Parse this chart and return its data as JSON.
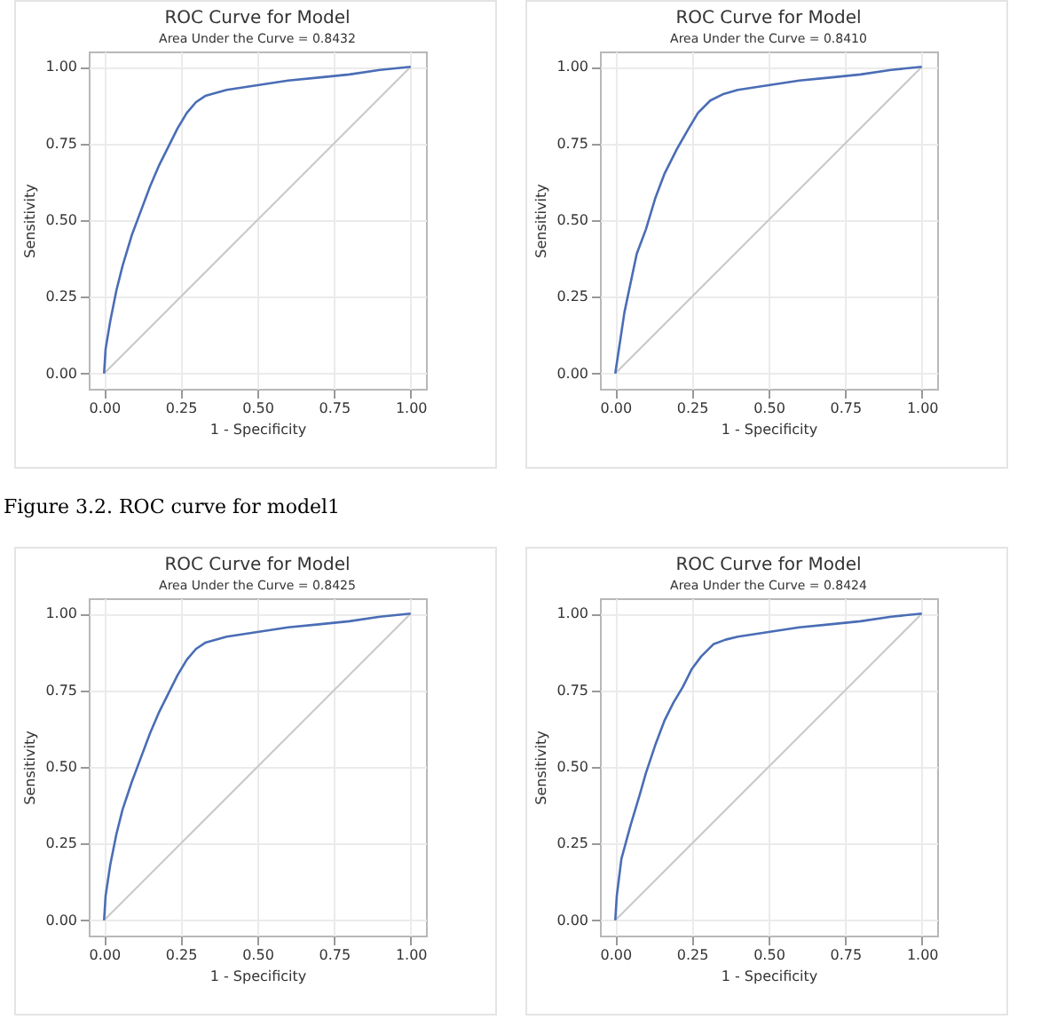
{
  "chart_data": [
    {
      "type": "line",
      "title": "ROC Curve for Model",
      "subtitle": "Area Under the Curve = 0.8432",
      "xlabel": "1 - Specificity",
      "ylabel": "Sensitivity",
      "annotations": [
        "Figure 3.2. ROC curve for model1"
      ],
      "xlim": [
        -0.05,
        1.05
      ],
      "ylim": [
        -0.05,
        1.05
      ],
      "xticks": [
        {
          "value": 0,
          "label": "0.00"
        },
        {
          "value": 0.25,
          "label": "0.25"
        },
        {
          "value": 0.5,
          "label": "0.50"
        },
        {
          "value": 0.75,
          "label": "0.75"
        },
        {
          "value": 1,
          "label": "1.00"
        }
      ],
      "yticks": [
        {
          "value": 0,
          "label": "0.00"
        },
        {
          "value": 0.25,
          "label": "0.25"
        },
        {
          "value": 0.5,
          "label": "0.50"
        },
        {
          "value": 0.75,
          "label": "0.75"
        },
        {
          "value": 1,
          "label": "1.00"
        }
      ],
      "grid": true,
      "series": [
        {
          "color": "#c8c8c8",
          "x": [
            0,
            1
          ],
          "values": [
            0,
            1
          ]
        },
        {
          "color": "#4a6db5",
          "x": [
            0,
            0.005,
            0.02,
            0.04,
            0.06,
            0.09,
            0.12,
            0.15,
            0.18,
            0.21,
            0.24,
            0.27,
            0.3,
            0.33,
            0.4,
            0.5,
            0.6,
            0.7,
            0.8,
            0.9,
            1
          ],
          "values": [
            0,
            0.08,
            0.17,
            0.27,
            0.35,
            0.45,
            0.53,
            0.61,
            0.68,
            0.74,
            0.8,
            0.85,
            0.885,
            0.905,
            0.925,
            0.94,
            0.955,
            0.965,
            0.975,
            0.99,
            1
          ]
        }
      ]
    },
    {
      "type": "line",
      "title": "ROC Curve for Model",
      "subtitle": "Area Under the Curve = 0.8410",
      "xlabel": "1 - Specificity",
      "ylabel": "Sensitivity",
      "xlim": [
        -0.05,
        1.05
      ],
      "ylim": [
        -0.05,
        1.05
      ],
      "xticks": [
        {
          "value": 0,
          "label": "0.00"
        },
        {
          "value": 0.25,
          "label": "0.25"
        },
        {
          "value": 0.5,
          "label": "0.50"
        },
        {
          "value": 0.75,
          "label": "0.75"
        },
        {
          "value": 1,
          "label": "1.00"
        }
      ],
      "yticks": [
        {
          "value": 0,
          "label": "0.00"
        },
        {
          "value": 0.25,
          "label": "0.25"
        },
        {
          "value": 0.5,
          "label": "0.50"
        },
        {
          "value": 0.75,
          "label": "0.75"
        },
        {
          "value": 1,
          "label": "1.00"
        }
      ],
      "grid": true,
      "series": [
        {
          "color": "#c8c8c8",
          "x": [
            0,
            1
          ],
          "values": [
            0,
            1
          ]
        },
        {
          "color": "#4a6db5",
          "x": [
            0,
            0.03,
            0.07,
            0.1,
            0.13,
            0.16,
            0.2,
            0.24,
            0.27,
            0.31,
            0.35,
            0.4,
            0.5,
            0.6,
            0.7,
            0.8,
            0.9,
            1
          ],
          "values": [
            0,
            0.2,
            0.39,
            0.47,
            0.57,
            0.65,
            0.73,
            0.8,
            0.85,
            0.89,
            0.91,
            0.925,
            0.94,
            0.955,
            0.965,
            0.975,
            0.99,
            1
          ]
        }
      ]
    },
    {
      "type": "line",
      "title": "ROC Curve for Model",
      "subtitle": "Area Under the Curve = 0.8425",
      "xlabel": "1 - Specificity",
      "ylabel": "Sensitivity",
      "xlim": [
        -0.05,
        1.05
      ],
      "ylim": [
        -0.05,
        1.05
      ],
      "xticks": [
        {
          "value": 0,
          "label": "0.00"
        },
        {
          "value": 0.25,
          "label": "0.25"
        },
        {
          "value": 0.5,
          "label": "0.50"
        },
        {
          "value": 0.75,
          "label": "0.75"
        },
        {
          "value": 1,
          "label": "1.00"
        }
      ],
      "yticks": [
        {
          "value": 0,
          "label": "0.00"
        },
        {
          "value": 0.25,
          "label": "0.25"
        },
        {
          "value": 0.5,
          "label": "0.50"
        },
        {
          "value": 0.75,
          "label": "0.75"
        },
        {
          "value": 1,
          "label": "1.00"
        }
      ],
      "grid": true,
      "series": [
        {
          "color": "#c8c8c8",
          "x": [
            0,
            1
          ],
          "values": [
            0,
            1
          ]
        },
        {
          "color": "#4a6db5",
          "x": [
            0,
            0.005,
            0.02,
            0.04,
            0.06,
            0.09,
            0.12,
            0.15,
            0.18,
            0.21,
            0.24,
            0.27,
            0.3,
            0.33,
            0.4,
            0.5,
            0.6,
            0.7,
            0.8,
            0.9,
            1
          ],
          "values": [
            0,
            0.08,
            0.18,
            0.28,
            0.36,
            0.45,
            0.53,
            0.61,
            0.68,
            0.74,
            0.8,
            0.85,
            0.885,
            0.905,
            0.925,
            0.94,
            0.955,
            0.965,
            0.975,
            0.99,
            1
          ]
        }
      ]
    },
    {
      "type": "line",
      "title": "ROC Curve for Model",
      "subtitle": "Area Under the Curve = 0.8424",
      "xlabel": "1 - Specificity",
      "ylabel": "Sensitivity",
      "xlim": [
        -0.05,
        1.05
      ],
      "ylim": [
        -0.05,
        1.05
      ],
      "xticks": [
        {
          "value": 0,
          "label": "0.00"
        },
        {
          "value": 0.25,
          "label": "0.25"
        },
        {
          "value": 0.5,
          "label": "0.50"
        },
        {
          "value": 0.75,
          "label": "0.75"
        },
        {
          "value": 1,
          "label": "1.00"
        }
      ],
      "yticks": [
        {
          "value": 0,
          "label": "0.00"
        },
        {
          "value": 0.25,
          "label": "0.25"
        },
        {
          "value": 0.5,
          "label": "0.50"
        },
        {
          "value": 0.75,
          "label": "0.75"
        },
        {
          "value": 1,
          "label": "1.00"
        }
      ],
      "grid": true,
      "series": [
        {
          "color": "#c8c8c8",
          "x": [
            0,
            1
          ],
          "values": [
            0,
            1
          ]
        },
        {
          "color": "#4a6db5",
          "x": [
            0,
            0.005,
            0.02,
            0.05,
            0.08,
            0.1,
            0.13,
            0.16,
            0.19,
            0.22,
            0.25,
            0.28,
            0.32,
            0.36,
            0.4,
            0.5,
            0.6,
            0.7,
            0.8,
            0.9,
            1
          ],
          "values": [
            0,
            0.08,
            0.2,
            0.31,
            0.41,
            0.48,
            0.57,
            0.65,
            0.71,
            0.76,
            0.82,
            0.86,
            0.9,
            0.915,
            0.925,
            0.94,
            0.955,
            0.965,
            0.975,
            0.99,
            1
          ]
        }
      ]
    }
  ]
}
